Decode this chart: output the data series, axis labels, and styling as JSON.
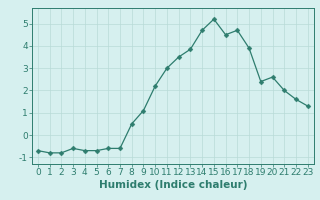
{
  "x": [
    0,
    1,
    2,
    3,
    4,
    5,
    6,
    7,
    8,
    9,
    10,
    11,
    12,
    13,
    14,
    15,
    16,
    17,
    18,
    19,
    20,
    21,
    22,
    23
  ],
  "y": [
    -0.7,
    -0.8,
    -0.8,
    -0.6,
    -0.7,
    -0.7,
    -0.6,
    -0.6,
    0.5,
    1.1,
    2.2,
    3.0,
    3.5,
    3.85,
    4.7,
    5.2,
    4.5,
    4.7,
    3.9,
    2.4,
    2.6,
    2.0,
    1.6,
    1.3
  ],
  "line_color": "#2e7d6e",
  "marker": "D",
  "marker_size": 2.5,
  "bg_color": "#d6f0ef",
  "grid_color": "#b8dbd8",
  "xlabel": "Humidex (Indice chaleur)",
  "xlim": [
    -0.5,
    23.5
  ],
  "ylim": [
    -1.3,
    5.7
  ],
  "xticks": [
    0,
    1,
    2,
    3,
    4,
    5,
    6,
    7,
    8,
    9,
    10,
    11,
    12,
    13,
    14,
    15,
    16,
    17,
    18,
    19,
    20,
    21,
    22,
    23
  ],
  "yticks": [
    -1,
    0,
    1,
    2,
    3,
    4,
    5
  ],
  "tick_fontsize": 6.5,
  "xlabel_fontsize": 7.5,
  "linewidth": 0.9
}
